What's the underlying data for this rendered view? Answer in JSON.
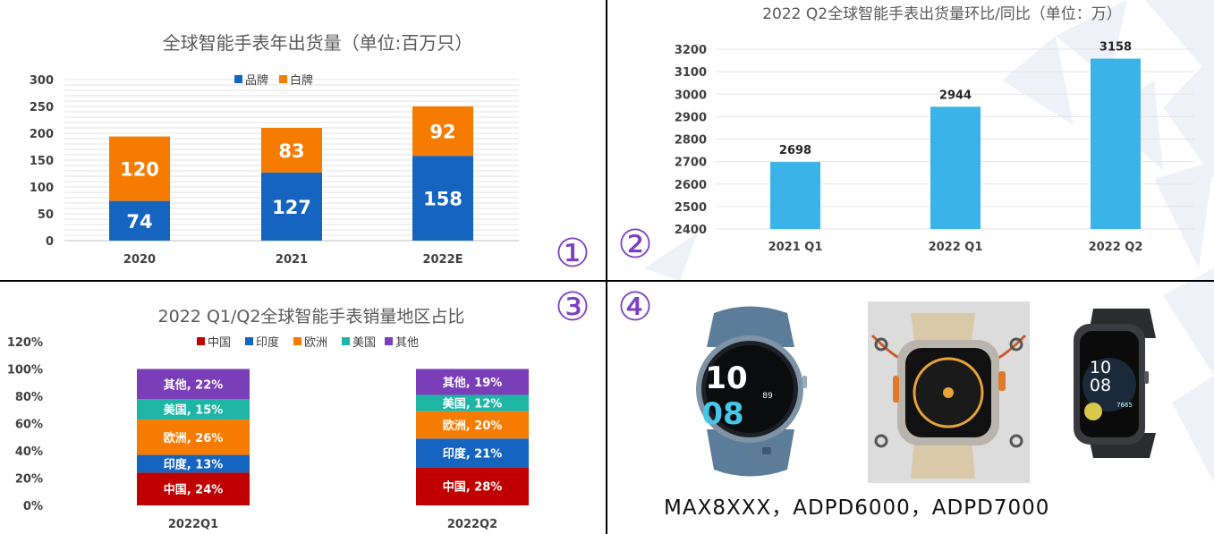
{
  "panel_markers": [
    "①",
    "②",
    "③",
    "④"
  ],
  "caption": "MAX8XXX，ADPD6000，ADPD7000",
  "colors": {
    "brand": "#1565c0",
    "whitelabel": "#f57c00",
    "qoq_bar": "#3ab4e8",
    "china": "#c00000",
    "india": "#1565c0",
    "europe": "#f57c00",
    "usa": "#1fb5a5",
    "other": "#7a3fb8",
    "marker": "#7b3fc4",
    "divider": "#000000"
  },
  "watches": [
    {
      "name": "round-smartwatch-blue",
      "face_text_1": "10",
      "face_text_2": "08",
      "face_text_small": "89"
    },
    {
      "name": "rugged-smartwatch-titanium"
    },
    {
      "name": "rectangular-smartwatch-black",
      "face_text_1": "10",
      "face_text_2": "08",
      "face_text_small": "7665"
    }
  ],
  "chart_data": [
    {
      "id": "annual",
      "type": "bar",
      "stacked": true,
      "title": "全球智能手表年出货量（单位:百万只）",
      "categories": [
        "2020",
        "2021",
        "2022E"
      ],
      "series": [
        {
          "name": "品牌",
          "values": [
            74,
            127,
            158
          ],
          "color": "#1565c0"
        },
        {
          "name": "白牌",
          "values": [
            120,
            83,
            92
          ],
          "color": "#f57c00"
        }
      ],
      "ylim": [
        0,
        300
      ],
      "yticks": [
        "0",
        "50",
        "100",
        "150",
        "200",
        "250",
        "300"
      ],
      "grid": true,
      "legend": "top-center"
    },
    {
      "id": "qoq",
      "type": "bar",
      "title": "2022 Q2全球智能手表出货量环比/同比（单位：万）",
      "categories": [
        "2021 Q1",
        "2022 Q1",
        "2022 Q2"
      ],
      "values": [
        2698,
        2944,
        3158
      ],
      "ylim": [
        2400,
        3200
      ],
      "yticks": [
        "2400",
        "2500",
        "2600",
        "2700",
        "2800",
        "2900",
        "3000",
        "3100",
        "3200"
      ],
      "grid": true
    },
    {
      "id": "region",
      "type": "bar",
      "stacked": true,
      "title": "2022 Q1/Q2全球智能手表销量地区占比",
      "categories": [
        "2022Q1",
        "2022Q2"
      ],
      "series": [
        {
          "name": "中国",
          "values": [
            24,
            28
          ],
          "labels": [
            "中国, 24%",
            "中国, 28%"
          ],
          "color": "#c00000"
        },
        {
          "name": "印度",
          "values": [
            13,
            21
          ],
          "labels": [
            "印度, 13%",
            "印度, 21%"
          ],
          "color": "#1565c0"
        },
        {
          "name": "欧洲",
          "values": [
            26,
            20
          ],
          "labels": [
            "欧洲, 26%",
            "欧洲, 20%"
          ],
          "color": "#f57c00"
        },
        {
          "name": "美国",
          "values": [
            15,
            12
          ],
          "labels": [
            "美国, 15%",
            "美国, 12%"
          ],
          "color": "#1fb5a5"
        },
        {
          "name": "其他",
          "values": [
            22,
            19
          ],
          "labels": [
            "其他, 22%",
            "其他, 19%"
          ],
          "color": "#7a3fb8"
        }
      ],
      "ylim": [
        0,
        120
      ],
      "yticks": [
        "0%",
        "20%",
        "40%",
        "60%",
        "80%",
        "100%",
        "120%"
      ],
      "grid": false,
      "legend": "top-center"
    }
  ]
}
